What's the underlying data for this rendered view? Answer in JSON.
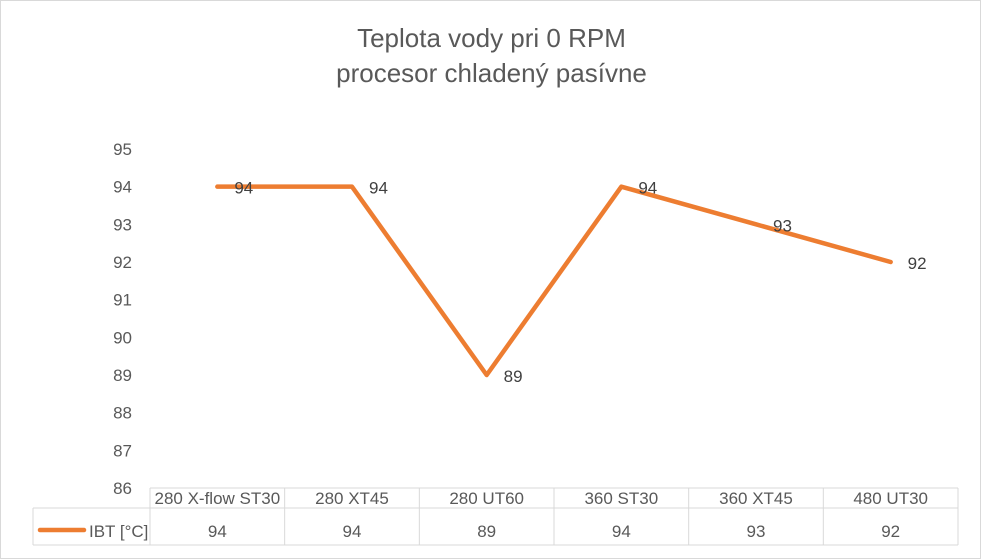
{
  "chart_data": {
    "type": "line",
    "title": "Teplota vody pri 0 RPM",
    "subtitle": "procesor chladený pasívne",
    "categories": [
      "280 X-flow ST30",
      "280 XT45",
      "280 UT60",
      "360 ST30",
      "360 XT45",
      "480 UT30"
    ],
    "series": [
      {
        "name": "IBT [°C]",
        "values": [
          94,
          94,
          89,
          94,
          93,
          92
        ],
        "color": "#ed7d31"
      }
    ],
    "ylim": [
      86,
      95
    ],
    "yticks": [
      86,
      87,
      88,
      89,
      90,
      91,
      92,
      93,
      94,
      95
    ],
    "grid": false,
    "legend": "data table",
    "data_labels": true,
    "data_table": true
  }
}
